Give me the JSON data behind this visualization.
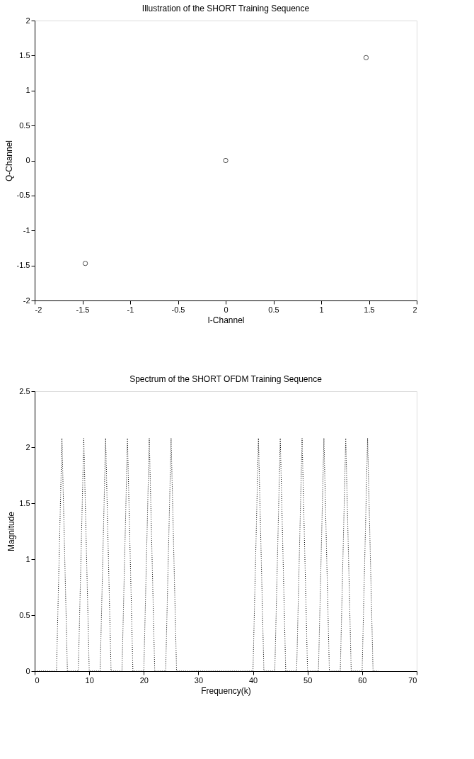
{
  "chart_data": [
    {
      "type": "scatter",
      "title": "Illustration of the SHORT Training Sequence",
      "xlabel": "I-Channel",
      "ylabel": "Q-Channel",
      "x": [
        -1.47,
        0,
        1.47
      ],
      "series": [
        {
          "color": "#000000",
          "values": [
            -1.47,
            0,
            1.47
          ]
        }
      ],
      "xlim": [
        -2,
        2
      ],
      "xticks": [
        -2,
        -1.5,
        -1,
        -0.5,
        0,
        0.5,
        1,
        1.5,
        2
      ],
      "ylim": [
        -2,
        2
      ],
      "yticks": [
        -2,
        -1.5,
        -1,
        -0.5,
        0,
        0.5,
        1,
        1.5,
        2
      ],
      "marker": "circle",
      "grid": false
    },
    {
      "type": "line",
      "title": "Spectrum of the SHORT OFDM Training Sequence",
      "xlabel": "Frequency(k)",
      "ylabel": "Magnitude",
      "x": [
        0,
        4,
        5,
        6,
        8,
        9,
        10,
        12,
        13,
        14,
        16,
        17,
        18,
        20,
        21,
        22,
        24,
        25,
        26,
        40,
        41,
        42,
        44,
        45,
        46,
        48,
        49,
        50,
        52,
        53,
        54,
        56,
        57,
        58,
        60,
        61,
        62,
        63
      ],
      "series": [
        {
          "color": "#000000",
          "values": [
            0,
            0,
            2.08,
            0,
            0,
            2.08,
            0,
            0,
            2.08,
            0,
            0,
            2.08,
            0,
            0,
            2.08,
            0,
            0,
            2.08,
            0,
            0,
            2.08,
            0,
            0,
            2.08,
            0,
            0,
            2.08,
            0,
            0,
            2.08,
            0,
            0,
            2.08,
            0,
            0,
            2.08,
            0,
            0
          ]
        }
      ],
      "xlim": [
        0,
        70
      ],
      "xticks": [
        0,
        10,
        20,
        30,
        40,
        50,
        60,
        70
      ],
      "ylim": [
        0,
        2.5
      ],
      "yticks": [
        0,
        0.5,
        1,
        1.5,
        2,
        2.5
      ],
      "line_style": "dotted",
      "marker": "none",
      "grid": false
    }
  ]
}
